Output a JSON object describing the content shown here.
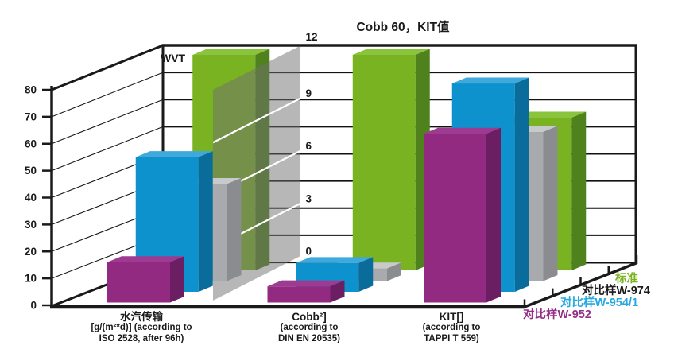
{
  "chart_data": {
    "type": "bar",
    "projection": "3d-columns",
    "title": "Cobb 60，KIT值",
    "left_axis": {
      "title": "WVT",
      "min": 0,
      "max": 80,
      "step": 10,
      "ticks": [
        0,
        10,
        20,
        30,
        40,
        50,
        60,
        70,
        80
      ],
      "applies_to": "水汽传输"
    },
    "right_axis": {
      "min": 0,
      "max": 12,
      "step": 3,
      "ticks": [
        0,
        3,
        6,
        9,
        12
      ],
      "panel": "semi-transparent gray wall between first and second category",
      "applies_to": "Cobb 60 and KIT"
    },
    "categories": [
      {
        "axis": "left",
        "label_lines": [
          "水汽传输",
          "[g/(m²*d)] (according to",
          "ISO 2528, after 96h)"
        ]
      },
      {
        "axis": "right",
        "label_lines": [
          "Cobb²]",
          "(according to",
          "DIN EN 20535)"
        ]
      },
      {
        "axis": "right",
        "label_lines": [
          "KIT[]",
          "(according to",
          "TAPPI T 559)"
        ]
      }
    ],
    "series": [
      {
        "name": "对比样W-952",
        "values": [
          15,
          0.9,
          9.4
        ],
        "colors": {
          "front": "#922a82",
          "top": "#9d3b92",
          "side": "#6c1e63"
        }
      },
      {
        "name": "对比样W-954/1",
        "values": [
          50,
          1.6,
          11.6
        ],
        "colors": {
          "front": "#0e92cd",
          "top": "#3fa9db",
          "side": "#0a6c9a"
        }
      },
      {
        "name": "对比样W-974",
        "values": [
          36,
          0.7,
          8.3
        ],
        "colors": {
          "front": "#a9aaad",
          "top": "#c8c9cb",
          "side": "#8a8c8f"
        }
      },
      {
        "name": "标准",
        "values": [
          80,
          12,
          8.5
        ],
        "colors": {
          "front": "#7ab322",
          "top": "#8ac33c",
          "side": "#4f811d"
        }
      }
    ],
    "series_order_front_to_back": [
      "对比样W-952",
      "对比样W-954/1",
      "对比样W-974",
      "标准"
    ],
    "grid": "on",
    "legend_position": "stepped along depth axis, bottom right"
  },
  "legend": {
    "items": [
      {
        "label": "标准",
        "color": "#7ab322"
      },
      {
        "label": "对比样W-974",
        "color": "#1a1a1a"
      },
      {
        "label": "对比样W-954/1",
        "color": "#29a8e0"
      },
      {
        "label": "对比样W-952",
        "color": "#962d86"
      }
    ]
  }
}
